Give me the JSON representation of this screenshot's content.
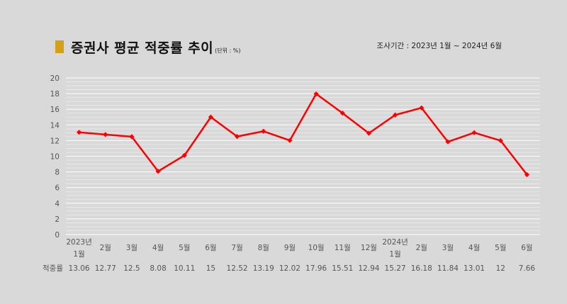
{
  "header": {
    "title": "증권사 평균 적중률 추이",
    "unit": "(단위 : %)",
    "period": "조사기간 : 2023년 1월 ~ 2024년 6월",
    "marker_color": "#d4a017"
  },
  "chart_data": {
    "type": "line",
    "title": "증권사 평균 적중률 추이",
    "ylim": [
      0,
      20
    ],
    "y_ticks": [
      "0",
      "2",
      "4",
      "6",
      "8",
      "10",
      "12",
      "14",
      "16",
      "18",
      "20"
    ],
    "grid": true,
    "line_color": "#ff0000",
    "categories": [
      [
        "2023년",
        "1월"
      ],
      [
        "2월"
      ],
      [
        "3월"
      ],
      [
        "4월"
      ],
      [
        "5월"
      ],
      [
        "6월"
      ],
      [
        "7월"
      ],
      [
        "8월"
      ],
      [
        "9월"
      ],
      [
        "10월"
      ],
      [
        "11월"
      ],
      [
        "12월"
      ],
      [
        "2024년",
        "1월"
      ],
      [
        "2월"
      ],
      [
        "3월"
      ],
      [
        "4월"
      ],
      [
        "5월"
      ],
      [
        "6월"
      ]
    ],
    "row_label": "적중률",
    "series": [
      {
        "values": [
          13.06,
          12.77,
          12.5,
          8.08,
          10.11,
          15,
          12.52,
          13.19,
          12.02,
          17.96,
          15.51,
          12.94,
          15.27,
          16.18,
          11.84,
          13.01,
          12,
          7.66
        ],
        "labels": [
          "13.06",
          "12.77",
          "12.5",
          "8.08",
          "10.11",
          "15",
          "12.52",
          "13.19",
          "12.02",
          "17.96",
          "15.51",
          "12.94",
          "15.27",
          "16.18",
          "11.84",
          "13.01",
          "12",
          "7.66"
        ]
      }
    ]
  }
}
